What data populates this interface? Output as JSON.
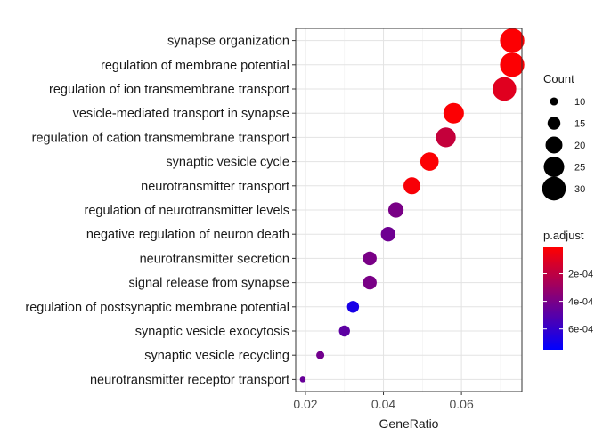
{
  "chart_data": {
    "type": "scatter",
    "xlabel": "GeneRatio",
    "ylabel": "",
    "title": "",
    "xlim": [
      0.0175,
      0.0755
    ],
    "x_ticks": [
      0.02,
      0.04,
      0.06
    ],
    "x_tick_labels": [
      "0.02",
      "0.04",
      "0.06"
    ],
    "grid": true,
    "legend_position": "right",
    "terms": [
      {
        "label": "synapse organization",
        "gene_ratio": 0.073,
        "count": 31,
        "p_adjust": 2e-05
      },
      {
        "label": "regulation of membrane potential",
        "gene_ratio": 0.073,
        "count": 31,
        "p_adjust": 2e-05
      },
      {
        "label": "regulation of ion transmembrane transport",
        "gene_ratio": 0.071,
        "count": 30,
        "p_adjust": 0.0001
      },
      {
        "label": "vesicle-mediated transport in synapse",
        "gene_ratio": 0.058,
        "count": 25,
        "p_adjust": 2e-05
      },
      {
        "label": "regulation of cation transmembrane transport",
        "gene_ratio": 0.056,
        "count": 24,
        "p_adjust": 0.00018
      },
      {
        "label": "synaptic vesicle cycle",
        "gene_ratio": 0.0518,
        "count": 22,
        "p_adjust": 2e-05
      },
      {
        "label": "neurotransmitter transport",
        "gene_ratio": 0.0473,
        "count": 20,
        "p_adjust": 3e-05
      },
      {
        "label": "regulation of neurotransmitter levels",
        "gene_ratio": 0.0432,
        "count": 18,
        "p_adjust": 0.0004
      },
      {
        "label": "negative regulation of neuron death",
        "gene_ratio": 0.0412,
        "count": 17,
        "p_adjust": 0.00043
      },
      {
        "label": "neurotransmitter secretion",
        "gene_ratio": 0.0365,
        "count": 16,
        "p_adjust": 0.0004
      },
      {
        "label": "signal release from synapse",
        "gene_ratio": 0.0365,
        "count": 16,
        "p_adjust": 0.0004
      },
      {
        "label": "regulation of postsynaptic membrane potential",
        "gene_ratio": 0.0322,
        "count": 14,
        "p_adjust": 0.00068
      },
      {
        "label": "synaptic vesicle exocytosis",
        "gene_ratio": 0.03,
        "count": 13,
        "p_adjust": 0.00048
      },
      {
        "label": "synaptic vesicle recycling",
        "gene_ratio": 0.0238,
        "count": 10,
        "p_adjust": 0.00042
      },
      {
        "label": "neurotransmitter receptor transport",
        "gene_ratio": 0.0193,
        "count": 8,
        "p_adjust": 0.00045
      }
    ],
    "size_legend": {
      "title": "Count",
      "values": [
        10,
        15,
        20,
        25,
        30
      ],
      "labels": [
        "10",
        "15",
        "20",
        "25",
        "30"
      ]
    },
    "color_legend": {
      "title": "p.adjust",
      "range": [
        1e-05,
        0.00075
      ],
      "ticks": [
        0.0002,
        0.0004,
        0.0006
      ],
      "tick_labels": [
        "2e-04",
        "4e-04",
        "6e-04"
      ],
      "color_low_value": "#ff0000",
      "color_high_value": "#0000ff"
    }
  }
}
